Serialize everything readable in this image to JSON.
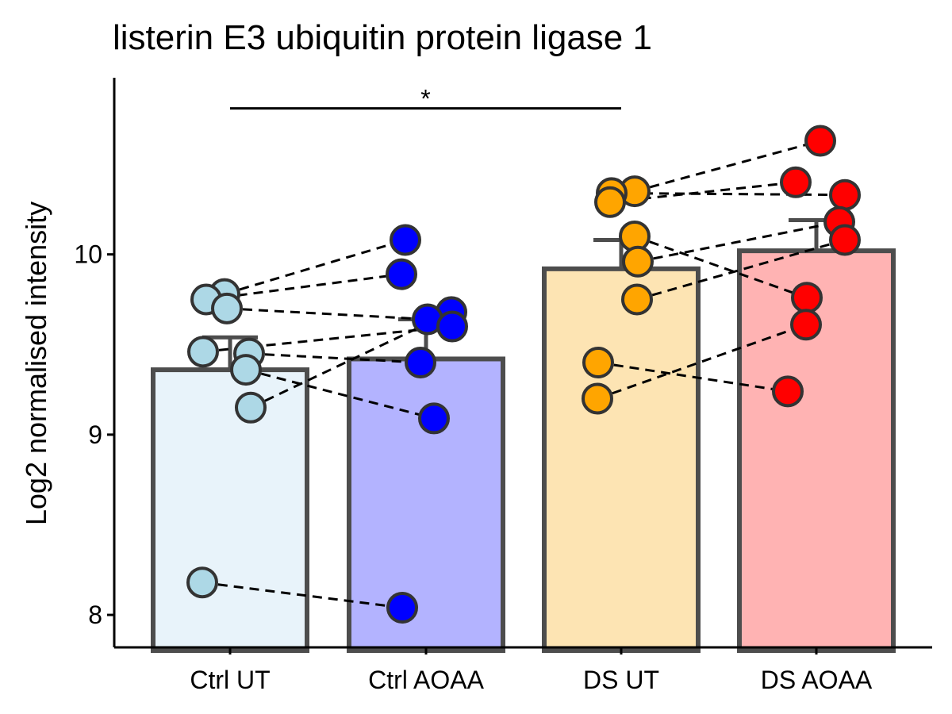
{
  "chart_data": {
    "type": "bar",
    "title": "listerin E3 ubiquitin protein ligase 1",
    "xlabel": "",
    "ylabel": "Log2 normalised intensity",
    "ylim": [
      7.82,
      10.98
    ],
    "yticks": [
      8,
      9,
      10
    ],
    "grid": false,
    "legend": "none",
    "categories": [
      "Ctrl UT",
      "Ctrl AOAA",
      "DS UT",
      "DS AOAA"
    ],
    "bar_values": [
      9.36,
      9.42,
      9.92,
      10.02
    ],
    "error_upper": [
      9.54,
      9.64,
      10.08,
      10.19
    ],
    "fill_colors": [
      "#e8f3fa",
      "#b3b3ff",
      "#fde4b3",
      "#ffb3b3"
    ],
    "point_colors": [
      "#add8e6",
      "#0000ff",
      "#ffa500",
      "#ff0000"
    ],
    "bar_edge_color": "#4d4d4d",
    "points": [
      {
        "group": 0,
        "values": [
          9.78,
          9.75,
          9.7,
          9.46,
          9.45,
          9.36,
          9.15,
          8.18
        ]
      },
      {
        "group": 1,
        "values": [
          10.08,
          9.89,
          9.68,
          9.64,
          9.6,
          9.4,
          9.09,
          8.04
        ]
      },
      {
        "group": 2,
        "values": [
          10.35,
          10.34,
          10.29,
          10.1,
          9.96,
          9.75,
          9.4,
          9.2
        ]
      },
      {
        "group": 3,
        "values": [
          10.63,
          10.4,
          10.33,
          10.18,
          10.08,
          9.76,
          9.61,
          9.24
        ]
      }
    ],
    "pairs": [
      {
        "from": 0,
        "to": 1,
        "values": [
          [
            9.78,
            10.08
          ],
          [
            9.75,
            9.89
          ],
          [
            9.7,
            9.64
          ],
          [
            9.46,
            9.6
          ],
          [
            9.45,
            9.4
          ],
          [
            9.36,
            9.09
          ],
          [
            9.15,
            9.68
          ],
          [
            8.18,
            8.04
          ]
        ]
      },
      {
        "from": 2,
        "to": 3,
        "values": [
          [
            10.35,
            10.63
          ],
          [
            10.34,
            10.33
          ],
          [
            10.29,
            10.4
          ],
          [
            10.1,
            9.76
          ],
          [
            9.96,
            10.18
          ],
          [
            9.75,
            10.08
          ],
          [
            9.4,
            9.24
          ],
          [
            9.2,
            9.61
          ]
        ]
      }
    ],
    "significance": [
      {
        "from": 0,
        "to": 2,
        "label": "*",
        "y": 10.81
      }
    ]
  }
}
